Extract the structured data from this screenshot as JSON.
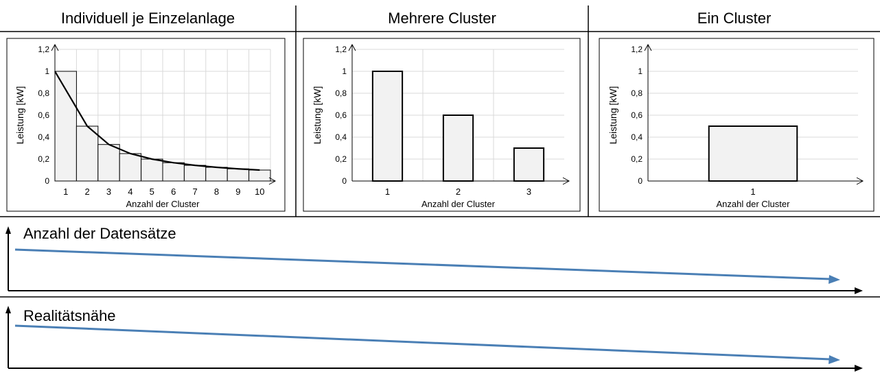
{
  "columns": [
    {
      "title": "Individuell je Einzelanlage"
    },
    {
      "title": "Mehrere Cluster"
    },
    {
      "title": "Ein Cluster"
    }
  ],
  "chart_data": [
    {
      "type": "bar",
      "categories": [
        "1",
        "2",
        "3",
        "4",
        "5",
        "6",
        "7",
        "8",
        "9",
        "10"
      ],
      "values": [
        1,
        0.5,
        0.333,
        0.25,
        0.2,
        0.167,
        0.143,
        0.125,
        0.111,
        0.1
      ],
      "line": [
        1,
        0.5,
        0.333,
        0.25,
        0.2,
        0.167,
        0.143,
        0.125,
        0.111,
        0.1
      ],
      "xlabel": "Anzahl der Cluster",
      "ylabel": "Leistung [kW]",
      "ylim": [
        0,
        1.2
      ],
      "yticks": [
        "0",
        "0,2",
        "0,4",
        "0,6",
        "0,8",
        "1",
        "1,2"
      ],
      "grid": true,
      "bar_color": "#f2f2f2"
    },
    {
      "type": "bar",
      "categories": [
        "1",
        "2",
        "3"
      ],
      "values": [
        1,
        0.6,
        0.3
      ],
      "xlabel": "Anzahl der Cluster",
      "ylabel": "Leistung [kW]",
      "ylim": [
        0,
        1.2
      ],
      "yticks": [
        "0",
        "0,2",
        "0,4",
        "0,6",
        "0,8",
        "1",
        "1,2"
      ],
      "grid": true,
      "bar_color": "#f2f2f2"
    },
    {
      "type": "bar",
      "categories": [
        "1"
      ],
      "values": [
        0.5
      ],
      "xlabel": "Anzahl der Cluster",
      "ylabel": "Leistung [kW]",
      "ylim": [
        0,
        1.2
      ],
      "yticks": [
        "0",
        "0,2",
        "0,4",
        "0,6",
        "0,8",
        "1",
        "1,2"
      ],
      "grid": true,
      "bar_color": "#f2f2f2"
    }
  ],
  "trends": [
    {
      "label": "Anzahl der Datensätze",
      "color": "#4a7fb5"
    },
    {
      "label": "Realitätsnähe",
      "color": "#4a7fb5"
    }
  ]
}
